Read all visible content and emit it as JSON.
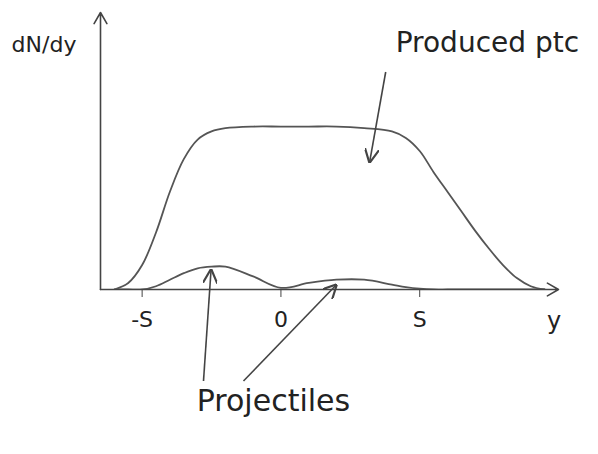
{
  "chart_data": {
    "type": "line",
    "x_label": "y",
    "y_label": "dN/dy",
    "x": [
      -6,
      -5.5,
      -5,
      -4.5,
      -4,
      -3.5,
      -3,
      -2.5,
      -2,
      -1,
      0,
      1,
      2,
      3,
      4,
      4.5,
      5,
      5.5,
      6,
      6.5,
      7,
      7.5,
      8,
      8.5,
      9,
      9.5
    ],
    "series": [
      {
        "name": "Produced ptc",
        "color": "#555555",
        "values": [
          0,
          0.04,
          0.15,
          0.35,
          0.6,
          0.8,
          0.92,
          0.97,
          0.99,
          1.0,
          1.0,
          1.0,
          1.0,
          0.99,
          0.97,
          0.93,
          0.85,
          0.72,
          0.6,
          0.48,
          0.36,
          0.25,
          0.15,
          0.07,
          0.02,
          0
        ]
      },
      {
        "name": "Projectiles",
        "color": "#555555",
        "values": [
          0,
          0,
          0,
          0.02,
          0.06,
          0.1,
          0.13,
          0.14,
          0.14,
          0.08,
          0.01,
          0.04,
          0.06,
          0.06,
          0.03,
          0.015,
          0.005,
          0,
          0,
          0,
          0,
          0,
          0,
          0,
          0,
          0
        ]
      }
    ],
    "xlim": [
      -6.5,
      10
    ],
    "xticks": [
      {
        "value": -5,
        "label": "-S"
      },
      0,
      {
        "value": 5,
        "label": "S"
      }
    ],
    "ylim": [
      0,
      1.7
    ],
    "tick_labels": "x",
    "grid": false
  }
}
